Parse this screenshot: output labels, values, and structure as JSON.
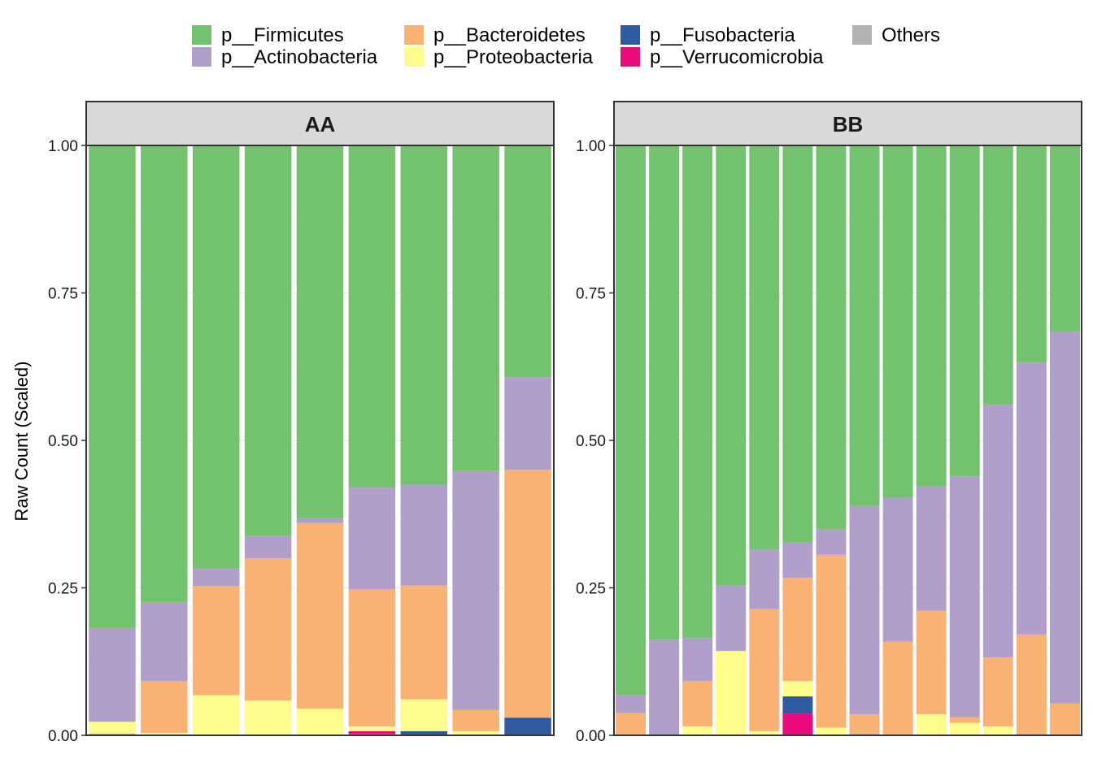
{
  "chart_data": {
    "type": "bar",
    "stacked": true,
    "ylabel": "Raw Count (Scaled)",
    "ylim": [
      0,
      1
    ],
    "yticks": [
      "0.00",
      "0.25",
      "0.50",
      "0.75",
      "1.00"
    ],
    "grid": true,
    "legend_position": "top",
    "legend": [
      {
        "name": "p__Firmicutes",
        "color": "#72C26E"
      },
      {
        "name": "p__Actinobacteria",
        "color": "#B09ECB"
      },
      {
        "name": "p__Bacteroidetes",
        "color": "#F9B274"
      },
      {
        "name": "p__Proteobacteria",
        "color": "#FEFD8C"
      },
      {
        "name": "p__Fusobacteria",
        "color": "#2E5AA0"
      },
      {
        "name": "p__Verrucomicrobia",
        "color": "#EA0A7C"
      },
      {
        "name": "Others",
        "color": "#B2B2B2"
      }
    ],
    "stack_order_bottom_to_top": [
      "Others",
      "p__Verrucomicrobia",
      "p__Fusobacteria",
      "p__Proteobacteria",
      "p__Bacteroidetes",
      "p__Actinobacteria",
      "p__Firmicutes"
    ],
    "panels": [
      {
        "strip": "AA",
        "bars": [
          {
            "Others": 0.003,
            "p__Verrucomicrobia": 0,
            "p__Fusobacteria": 0,
            "p__Proteobacteria": 0.02,
            "p__Bacteroidetes": 0,
            "p__Actinobacteria": 0.159,
            "p__Firmicutes": 0.818
          },
          {
            "Others": 0.001,
            "p__Verrucomicrobia": 0,
            "p__Fusobacteria": 0,
            "p__Proteobacteria": 0.003,
            "p__Bacteroidetes": 0.088,
            "p__Actinobacteria": 0.134,
            "p__Firmicutes": 0.774
          },
          {
            "Others": 0,
            "p__Verrucomicrobia": 0,
            "p__Fusobacteria": 0,
            "p__Proteobacteria": 0.068,
            "p__Bacteroidetes": 0.185,
            "p__Actinobacteria": 0.03,
            "p__Firmicutes": 0.717
          },
          {
            "Others": 0,
            "p__Verrucomicrobia": 0,
            "p__Fusobacteria": 0,
            "p__Proteobacteria": 0.059,
            "p__Bacteroidetes": 0.241,
            "p__Actinobacteria": 0.038,
            "p__Firmicutes": 0.662
          },
          {
            "Others": 0,
            "p__Verrucomicrobia": 0,
            "p__Fusobacteria": 0,
            "p__Proteobacteria": 0.045,
            "p__Bacteroidetes": 0.315,
            "p__Actinobacteria": 0.008,
            "p__Firmicutes": 0.632
          },
          {
            "Others": 0.002,
            "p__Verrucomicrobia": 0.005,
            "p__Fusobacteria": 0,
            "p__Proteobacteria": 0.008,
            "p__Bacteroidetes": 0.233,
            "p__Actinobacteria": 0.172,
            "p__Firmicutes": 0.58
          },
          {
            "Others": 0,
            "p__Verrucomicrobia": 0,
            "p__Fusobacteria": 0.007,
            "p__Proteobacteria": 0.054,
            "p__Bacteroidetes": 0.193,
            "p__Actinobacteria": 0.171,
            "p__Firmicutes": 0.575
          },
          {
            "Others": 0,
            "p__Verrucomicrobia": 0,
            "p__Fusobacteria": 0,
            "p__Proteobacteria": 0.007,
            "p__Bacteroidetes": 0.036,
            "p__Actinobacteria": 0.405,
            "p__Firmicutes": 0.552
          },
          {
            "Others": 0,
            "p__Verrucomicrobia": 0,
            "p__Fusobacteria": 0.03,
            "p__Proteobacteria": 0,
            "p__Bacteroidetes": 0.42,
            "p__Actinobacteria": 0.157,
            "p__Firmicutes": 0.393
          }
        ]
      },
      {
        "strip": "BB",
        "bars": [
          {
            "Others": 0,
            "p__Verrucomicrobia": 0,
            "p__Fusobacteria": 0,
            "p__Proteobacteria": 0.001,
            "p__Bacteroidetes": 0.037,
            "p__Actinobacteria": 0.03,
            "p__Firmicutes": 0.932
          },
          {
            "Others": 0,
            "p__Verrucomicrobia": 0,
            "p__Fusobacteria": 0,
            "p__Proteobacteria": 0,
            "p__Bacteroidetes": 0,
            "p__Actinobacteria": 0.162,
            "p__Firmicutes": 0.838
          },
          {
            "Others": 0,
            "p__Verrucomicrobia": 0,
            "p__Fusobacteria": 0,
            "p__Proteobacteria": 0.015,
            "p__Bacteroidetes": 0.077,
            "p__Actinobacteria": 0.073,
            "p__Firmicutes": 0.835
          },
          {
            "Others": 0,
            "p__Verrucomicrobia": 0,
            "p__Fusobacteria": 0,
            "p__Proteobacteria": 0.143,
            "p__Bacteroidetes": 0,
            "p__Actinobacteria": 0.111,
            "p__Firmicutes": 0.746
          },
          {
            "Others": 0,
            "p__Verrucomicrobia": 0,
            "p__Fusobacteria": 0,
            "p__Proteobacteria": 0.007,
            "p__Bacteroidetes": 0.207,
            "p__Actinobacteria": 0.101,
            "p__Firmicutes": 0.685
          },
          {
            "Others": 0,
            "p__Verrucomicrobia": 0.037,
            "p__Fusobacteria": 0.029,
            "p__Proteobacteria": 0.026,
            "p__Bacteroidetes": 0.175,
            "p__Actinobacteria": 0.06,
            "p__Firmicutes": 0.673
          },
          {
            "Others": 0,
            "p__Verrucomicrobia": 0,
            "p__Fusobacteria": 0,
            "p__Proteobacteria": 0.013,
            "p__Bacteroidetes": 0.293,
            "p__Actinobacteria": 0.044,
            "p__Firmicutes": 0.65
          },
          {
            "Others": 0.003,
            "p__Verrucomicrobia": 0,
            "p__Fusobacteria": 0,
            "p__Proteobacteria": 0,
            "p__Bacteroidetes": 0.033,
            "p__Actinobacteria": 0.353,
            "p__Firmicutes": 0.611
          },
          {
            "Others": 0,
            "p__Verrucomicrobia": 0,
            "p__Fusobacteria": 0,
            "p__Proteobacteria": 0,
            "p__Bacteroidetes": 0.159,
            "p__Actinobacteria": 0.244,
            "p__Firmicutes": 0.597
          },
          {
            "Others": 0,
            "p__Verrucomicrobia": 0,
            "p__Fusobacteria": 0,
            "p__Proteobacteria": 0.036,
            "p__Bacteroidetes": 0.175,
            "p__Actinobacteria": 0.211,
            "p__Firmicutes": 0.578
          },
          {
            "Others": 0,
            "p__Verrucomicrobia": 0,
            "p__Fusobacteria": 0,
            "p__Proteobacteria": 0.021,
            "p__Bacteroidetes": 0.01,
            "p__Actinobacteria": 0.408,
            "p__Firmicutes": 0.561
          },
          {
            "Others": 0,
            "p__Verrucomicrobia": 0,
            "p__Fusobacteria": 0,
            "p__Proteobacteria": 0.015,
            "p__Bacteroidetes": 0.117,
            "p__Actinobacteria": 0.429,
            "p__Firmicutes": 0.439
          },
          {
            "Others": 0.003,
            "p__Verrucomicrobia": 0,
            "p__Fusobacteria": 0,
            "p__Proteobacteria": 0,
            "p__Bacteroidetes": 0.168,
            "p__Actinobacteria": 0.461,
            "p__Firmicutes": 0.368
          },
          {
            "Others": 0,
            "p__Verrucomicrobia": 0,
            "p__Fusobacteria": 0,
            "p__Proteobacteria": 0,
            "p__Bacteroidetes": 0.054,
            "p__Actinobacteria": 0.63,
            "p__Firmicutes": 0.316
          }
        ]
      }
    ]
  }
}
